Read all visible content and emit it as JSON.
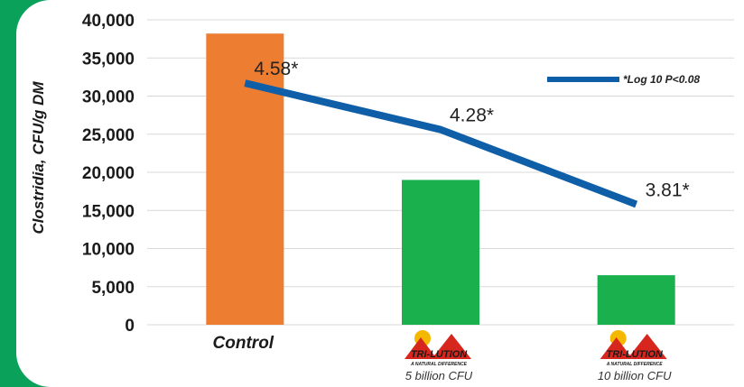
{
  "chart_data": {
    "type": "bar",
    "categories": [
      "Control",
      "",
      ""
    ],
    "category_sublabels": [
      "",
      "5 billion CFU",
      "10 billion CFU"
    ],
    "category_logos": [
      false,
      true,
      true
    ],
    "values": [
      38200,
      19000,
      6500
    ],
    "bar_colors": [
      "#ed7d31",
      "#1ab04d",
      "#1ab04d"
    ],
    "line_series": {
      "name": "*Log 10 P<0.08",
      "color": "#0f5ea8",
      "values": [
        31700,
        25600,
        15800
      ],
      "labels": [
        "4.58*",
        "4.28*",
        "3.81*"
      ]
    },
    "ylabel": "Clostridia, CFU/g DM",
    "ylim": [
      0,
      40000
    ],
    "yticks": [
      0,
      5000,
      10000,
      15000,
      20000,
      25000,
      30000,
      35000,
      40000
    ],
    "ytick_labels": [
      "0",
      "5,000",
      "10,000",
      "15,000",
      "20,000",
      "25,000",
      "30,000",
      "35,000",
      "40,000"
    ],
    "grid": true,
    "legend_position": "top-right"
  },
  "logo": {
    "brand": "TRI-LUTION",
    "tagline": "A NATURAL DIFFERENCE"
  },
  "colors": {
    "background": "#0aa15a",
    "grid": "#d9d9d9"
  }
}
